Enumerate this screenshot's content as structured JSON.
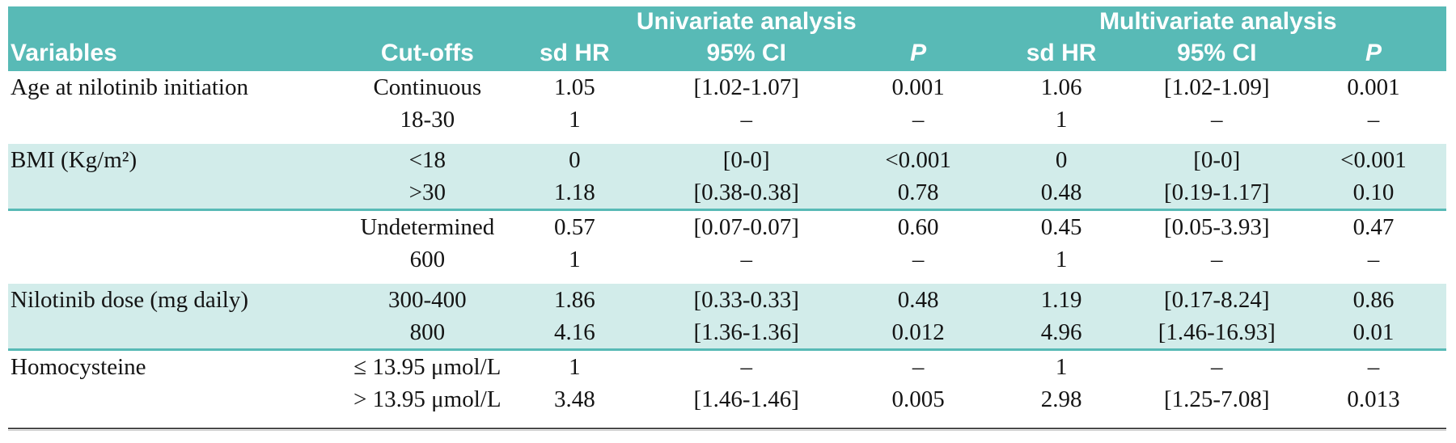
{
  "table": {
    "group_headers": {
      "univariate": "Univariate analysis",
      "multivariate": "Multivariate analysis"
    },
    "columns": {
      "variables": "Variables",
      "cutoffs": "Cut-offs",
      "sd_hr": "sd HR",
      "ci": "95% CI",
      "p": "P"
    },
    "rows": [
      {
        "variable": "Age at nilotinib initiation",
        "cutoff": "Continuous",
        "u_hr": "1.05",
        "u_ci": "[1.02-1.07]",
        "u_p": "0.001",
        "m_hr": "1.06",
        "m_ci": "[1.02-1.09]",
        "m_p": "0.001"
      },
      {
        "variable": "",
        "cutoff": "18-30",
        "u_hr": "1",
        "u_ci": "–",
        "u_p": "–",
        "m_hr": "1",
        "m_ci": "–",
        "m_p": "–"
      },
      {
        "variable": "BMI (Kg/m²)",
        "cutoff": "<18",
        "u_hr": "0",
        "u_ci": "[0-0]",
        "u_p": "<0.001",
        "m_hr": "0",
        "m_ci": "[0-0]",
        "m_p": "<0.001"
      },
      {
        "variable": "",
        "cutoff": ">30",
        "u_hr": "1.18",
        "u_ci": "[0.38-0.38]",
        "u_p": "0.78",
        "m_hr": "0.48",
        "m_ci": "[0.19-1.17]",
        "m_p": "0.10"
      },
      {
        "variable": "",
        "cutoff": "Undetermined",
        "u_hr": "0.57",
        "u_ci": "[0.07-0.07]",
        "u_p": "0.60",
        "m_hr": "0.45",
        "m_ci": "[0.05-3.93]",
        "m_p": "0.47"
      },
      {
        "variable": "",
        "cutoff": "600",
        "u_hr": "1",
        "u_ci": "–",
        "u_p": "–",
        "m_hr": "1",
        "m_ci": "–",
        "m_p": "–"
      },
      {
        "variable": "Nilotinib dose (mg daily)",
        "cutoff": "300-400",
        "u_hr": "1.86",
        "u_ci": "[0.33-0.33]",
        "u_p": "0.48",
        "m_hr": "1.19",
        "m_ci": "[0.17-8.24]",
        "m_p": "0.86"
      },
      {
        "variable": "",
        "cutoff": "800",
        "u_hr": "4.16",
        "u_ci": "[1.36-1.36]",
        "u_p": "0.012",
        "m_hr": "4.96",
        "m_ci": "[1.46-16.93]",
        "m_p": "0.01"
      },
      {
        "variable": "Homocysteine",
        "cutoff": "≤ 13.95 μmol/L",
        "u_hr": "1",
        "u_ci": "–",
        "u_p": "–",
        "m_hr": "1",
        "m_ci": "–",
        "m_p": "–"
      },
      {
        "variable": "",
        "cutoff": "> 13.95 μmol/L",
        "u_hr": "3.48",
        "u_ci": "[1.46-1.46]",
        "u_p": "0.005",
        "m_hr": "2.98",
        "m_ci": "[1.25-7.08]",
        "m_p": "0.013"
      }
    ],
    "colors": {
      "header_teal": "#58bab6",
      "row_shade_teal": "#d2ecea",
      "block_separator_teal": "#58bab6",
      "bottom_rule": "#4a4a4a"
    }
  }
}
